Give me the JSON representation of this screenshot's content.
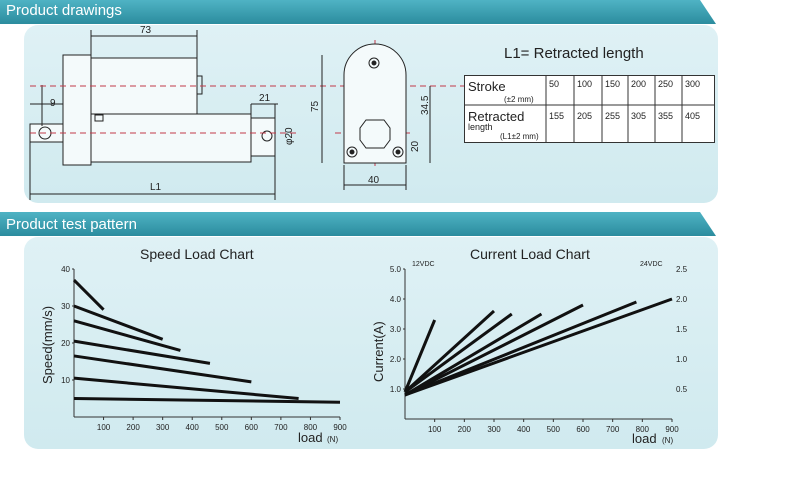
{
  "sections": {
    "drawings_title": "Product  drawings",
    "test_title": "Product test pattern"
  },
  "drawing": {
    "dim_73": "73",
    "dim_9": "9",
    "dim_21": "21",
    "dim_phi20": "φ20",
    "dim_L1": "L1",
    "dim_75": "75",
    "dim_34_5": "34.5",
    "dim_20": "20",
    "dim_40": "40"
  },
  "table": {
    "caption": "L1= Retracted length",
    "stroke_label": "Stroke",
    "stroke_tol": "(±2 mm)",
    "stroke_values": [
      "50",
      "100",
      "150",
      "200",
      "250",
      "300"
    ],
    "retracted_label": "Retracted",
    "retracted_sub": "length",
    "retracted_tol": "(L1±2 mm)",
    "retracted_values": [
      "155",
      "205",
      "255",
      "305",
      "355",
      "405"
    ]
  },
  "chart_data": [
    {
      "type": "line",
      "title": "Speed Load Chart",
      "xlabel": "load",
      "xunit": "(N)",
      "ylabel": "Speed(mm/s)",
      "xticks": [
        "100",
        "200",
        "300",
        "400",
        "500",
        "600",
        "700",
        "800",
        "900"
      ],
      "yticks": [
        "10",
        "20",
        "30",
        "40"
      ],
      "xlim": [
        0,
        900
      ],
      "ylim": [
        0,
        40
      ],
      "series": [
        {
          "x": [
            0,
            100
          ],
          "y": [
            37,
            29
          ]
        },
        {
          "x": [
            0,
            300
          ],
          "y": [
            30,
            21
          ]
        },
        {
          "x": [
            0,
            360
          ],
          "y": [
            26,
            18
          ]
        },
        {
          "x": [
            0,
            460
          ],
          "y": [
            20.5,
            14.5
          ]
        },
        {
          "x": [
            0,
            600
          ],
          "y": [
            16.5,
            9.5
          ]
        },
        {
          "x": [
            0,
            760
          ],
          "y": [
            10.5,
            5
          ]
        },
        {
          "x": [
            0,
            900
          ],
          "y": [
            5,
            4
          ]
        }
      ]
    },
    {
      "type": "line",
      "title": "Current Load Chart",
      "xlabel": "load",
      "xunit": "(N)",
      "ylabel": "Current(A)",
      "y_left_title": "12VDC",
      "y_right_title": "24VDC",
      "xticks": [
        "100",
        "200",
        "300",
        "400",
        "500",
        "600",
        "700",
        "800",
        "900"
      ],
      "yticks_left": [
        "1.0",
        "2.0",
        "3.0",
        "4.0",
        "5.0"
      ],
      "yticks_right": [
        "0.5",
        "1.0",
        "1.5",
        "2.0",
        "2.5"
      ],
      "xlim": [
        0,
        900
      ],
      "ylim": [
        0,
        5
      ],
      "series": [
        {
          "x": [
            0,
            100
          ],
          "y": [
            0.9,
            3.3
          ]
        },
        {
          "x": [
            0,
            300
          ],
          "y": [
            0.9,
            3.6
          ]
        },
        {
          "x": [
            0,
            360
          ],
          "y": [
            0.9,
            3.5
          ]
        },
        {
          "x": [
            0,
            460
          ],
          "y": [
            0.8,
            3.5
          ]
        },
        {
          "x": [
            0,
            600
          ],
          "y": [
            0.8,
            3.8
          ]
        },
        {
          "x": [
            0,
            780
          ],
          "y": [
            0.8,
            3.9
          ]
        },
        {
          "x": [
            0,
            900
          ],
          "y": [
            0.8,
            4.0
          ]
        }
      ]
    }
  ]
}
